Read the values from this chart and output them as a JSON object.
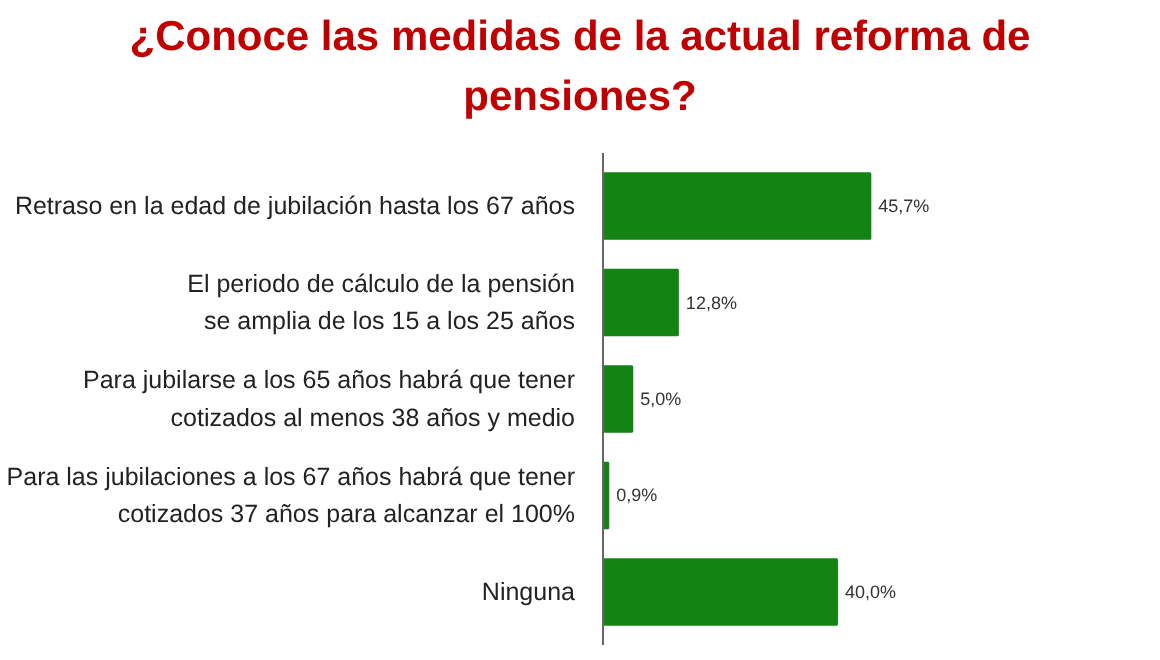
{
  "chart_data": {
    "type": "bar",
    "orientation": "horizontal",
    "title": "¿Conoce las medidas de la actual reforma de pensiones?",
    "categories": [
      "Retraso en la edad de jubilación hasta los 67 años",
      "El periodo de cálculo de la pensión\nse amplia de los 15 a los 25 años",
      "Para jubilarse a los 65 años habrá que tener\ncotizados al menos 38 años y medio",
      "Para las jubilaciones a los 67 años habrá que tener\ncotizados 37 años para alcanzar el 100%",
      "Ninguna"
    ],
    "values": [
      45.7,
      12.8,
      5.0,
      0.9,
      40.0
    ],
    "value_labels": [
      "45,7%",
      "12,8%",
      "5,0%",
      "0,9%",
      "40,0%"
    ],
    "color": "#138413"
  }
}
